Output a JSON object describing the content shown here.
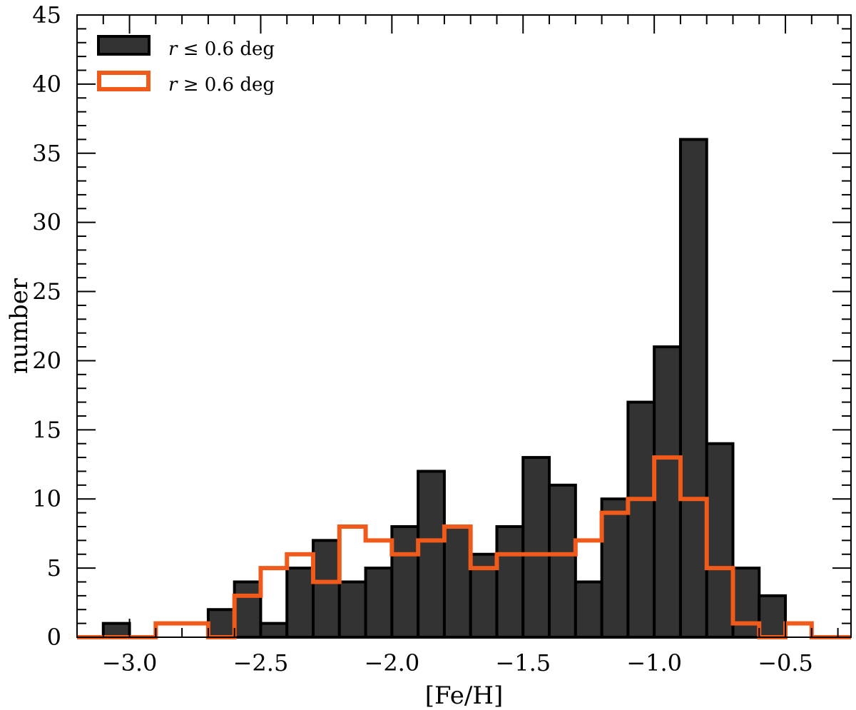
{
  "chart_data": {
    "type": "histogram",
    "xlabel": "[Fe/H]",
    "ylabel": "number",
    "xlim": [
      -3.2,
      -0.25
    ],
    "ylim": [
      0,
      45
    ],
    "bin_width": 0.1,
    "x_ticks": [
      -3.0,
      -2.5,
      -2.0,
      -1.5,
      -1.0,
      -0.5
    ],
    "x_tick_labels": [
      "−3.0",
      "−2.5",
      "−2.0",
      "−1.5",
      "−1.0",
      "−0.5"
    ],
    "y_ticks": [
      0,
      5,
      10,
      15,
      20,
      25,
      30,
      35,
      40,
      45
    ],
    "y_tick_labels": [
      "0",
      "5",
      "10",
      "15",
      "20",
      "25",
      "30",
      "35",
      "40",
      "45"
    ],
    "legend_position": "top-left",
    "series": [
      {
        "name_var": "r",
        "name_rest": " ≤ 0.6 deg",
        "style": "filled",
        "color": "#333333",
        "edge_color": "#000000",
        "bin_starts": [
          -3.2,
          -3.1,
          -3.0,
          -2.9,
          -2.8,
          -2.7,
          -2.6,
          -2.5,
          -2.4,
          -2.3,
          -2.2,
          -2.1,
          -2.0,
          -1.9,
          -1.8,
          -1.7,
          -1.6,
          -1.5,
          -1.4,
          -1.3,
          -1.2,
          -1.1,
          -1.0,
          -0.9,
          -0.8,
          -0.7,
          -0.6,
          -0.5,
          -0.4,
          -0.3
        ],
        "values": [
          0,
          1,
          0,
          0,
          0,
          2,
          4,
          1,
          5,
          7,
          4,
          5,
          8,
          12,
          8,
          6,
          8,
          13,
          11,
          4,
          10,
          17,
          21,
          36,
          14,
          5,
          3,
          0,
          0,
          0
        ]
      },
      {
        "name_var": "r",
        "name_rest": " ≥ 0.6 deg",
        "style": "step",
        "color": "#f05a1a",
        "bin_starts": [
          -3.2,
          -3.1,
          -3.0,
          -2.9,
          -2.8,
          -2.7,
          -2.6,
          -2.5,
          -2.4,
          -2.3,
          -2.2,
          -2.1,
          -2.0,
          -1.9,
          -1.8,
          -1.7,
          -1.6,
          -1.5,
          -1.4,
          -1.3,
          -1.2,
          -1.1,
          -1.0,
          -0.9,
          -0.8,
          -0.7,
          -0.6,
          -0.5,
          -0.4,
          -0.3
        ],
        "values": [
          0,
          0,
          0,
          1,
          1,
          0,
          3,
          5,
          6,
          4,
          8,
          7,
          6,
          7,
          8,
          5,
          6,
          6,
          6,
          7,
          9,
          10,
          13,
          10,
          5,
          1,
          0,
          1,
          0,
          0
        ]
      }
    ]
  }
}
